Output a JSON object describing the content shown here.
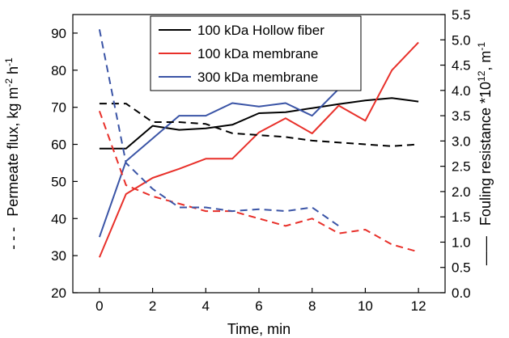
{
  "chart_data": {
    "type": "line",
    "xlabel": "Time, min",
    "ylabel_left": {
      "prefix": "Permeate flux, kg m",
      "sup1": "-2",
      "mid": " h",
      "sup2": "-1"
    },
    "ylabel_right": {
      "prefix": "Fouling resistance *10",
      "sup1": "12",
      "mid": ", m",
      "sup2": "-1"
    },
    "left_axis_marker": "- - -",
    "right_axis_marker": "——",
    "xlim": [
      -1,
      13
    ],
    "ylim_left": [
      20,
      95
    ],
    "ylim_right": [
      0.0,
      5.5
    ],
    "x_ticks": [
      0,
      2,
      4,
      6,
      8,
      10,
      12
    ],
    "y_ticks_left": [
      20,
      30,
      40,
      50,
      60,
      70,
      80,
      90
    ],
    "y_ticks_right": [
      "0.0",
      "0.5",
      "1.0",
      "1.5",
      "2.0",
      "2.5",
      "3.0",
      "3.5",
      "4.0",
      "4.5",
      "5.0",
      "5.5"
    ],
    "legend_placement": "top-center",
    "grid": false,
    "series": [
      {
        "name": "100 kDa Hollow fiber",
        "color": "#000000",
        "style": "solid",
        "axis": "right",
        "x": [
          0,
          1,
          2,
          3,
          4,
          5,
          6,
          7,
          8,
          9,
          10,
          11,
          12
        ],
        "y": [
          2.85,
          2.85,
          3.3,
          3.22,
          3.25,
          3.32,
          3.55,
          3.57,
          3.65,
          3.73,
          3.8,
          3.85,
          3.78
        ]
      },
      {
        "name": "100 kDa membrane",
        "color": "#e8302a",
        "style": "solid",
        "axis": "right",
        "x": [
          0,
          1,
          2,
          3,
          4,
          5,
          6,
          7,
          8,
          9,
          10,
          11,
          12
        ],
        "y": [
          0.7,
          1.95,
          2.27,
          2.45,
          2.65,
          2.65,
          3.17,
          3.45,
          3.15,
          3.7,
          3.4,
          4.4,
          4.95
        ]
      },
      {
        "name": "300 kDa membrane",
        "color": "#3a54a6",
        "style": "solid",
        "axis": "right",
        "x": [
          0,
          1,
          2,
          3,
          4,
          5,
          6,
          7,
          8,
          9
        ],
        "y": [
          1.1,
          2.6,
          3.05,
          3.5,
          3.5,
          3.75,
          3.68,
          3.75,
          3.5,
          4.03
        ]
      },
      {
        "color": "#000000",
        "style": "dashed",
        "axis": "left",
        "x": [
          0,
          1,
          2,
          3,
          4,
          5,
          6,
          7,
          8,
          9,
          10,
          11,
          12
        ],
        "y": [
          71,
          71,
          66,
          66,
          65.5,
          63,
          62.5,
          62,
          61,
          60.5,
          60,
          59.5,
          60
        ]
      },
      {
        "color": "#e8302a",
        "style": "dashed",
        "axis": "left",
        "x": [
          0,
          1,
          2,
          3,
          4,
          5,
          6,
          7,
          8,
          9,
          10,
          11,
          12
        ],
        "y": [
          69,
          49,
          46,
          44,
          42,
          42,
          40,
          38,
          40,
          36,
          37,
          33,
          31
        ]
      },
      {
        "color": "#3a54a6",
        "style": "dashed",
        "axis": "left",
        "x": [
          0,
          1,
          2,
          3,
          4,
          5,
          6,
          7,
          8,
          9
        ],
        "y": [
          91,
          55,
          48,
          43,
          43,
          42,
          42.5,
          42,
          43,
          38
        ]
      }
    ]
  }
}
